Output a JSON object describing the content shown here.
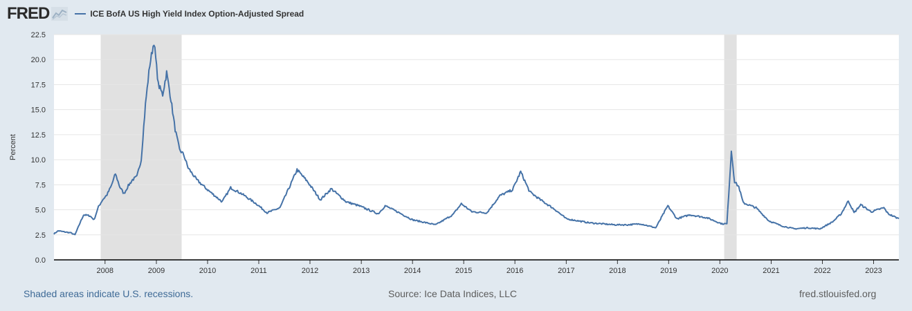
{
  "header": {
    "logo_text": "FRED",
    "legend_label": "ICE BofA US High Yield Index Option-Adjusted Spread"
  },
  "footer": {
    "recession_note": "Shaded areas indicate U.S. recessions.",
    "source": "Source: Ice Data Indices, LLC",
    "site": "fred.stlouisfed.org"
  },
  "colors": {
    "line": "#4572a7",
    "recession": "#e1e1e1",
    "background": "#e1e9f0",
    "plot": "#ffffff"
  },
  "chart_data": {
    "type": "line",
    "ylabel": "Percent",
    "ylim": [
      0,
      22.5
    ],
    "yticks": [
      "0.0",
      "2.5",
      "5.0",
      "7.5",
      "10.0",
      "12.5",
      "15.0",
      "17.5",
      "20.0",
      "22.5"
    ],
    "xlim": [
      "2007-01-02",
      "2023-06-30"
    ],
    "xticks": [
      "2008",
      "2009",
      "2010",
      "2011",
      "2012",
      "2013",
      "2014",
      "2015",
      "2016",
      "2017",
      "2018",
      "2019",
      "2020",
      "2021",
      "2022",
      "2023"
    ],
    "grid": true,
    "legend": "top-left",
    "recessions": [
      {
        "start": "2007-12-01",
        "end": "2009-06-30"
      },
      {
        "start": "2020-02-01",
        "end": "2020-04-30"
      }
    ],
    "series": [
      {
        "name": "ICE BofA US High Yield Index Option-Adjusted Spread",
        "points": [
          [
            "2007-01-02",
            2.6
          ],
          [
            "2007-02-01",
            2.9
          ],
          [
            "2007-03-15",
            2.8
          ],
          [
            "2007-05-01",
            2.7
          ],
          [
            "2007-06-01",
            2.5
          ],
          [
            "2007-07-01",
            3.5
          ],
          [
            "2007-08-01",
            4.5
          ],
          [
            "2007-09-15",
            4.4
          ],
          [
            "2007-10-15",
            4.0
          ],
          [
            "2007-11-15",
            5.3
          ],
          [
            "2007-12-15",
            6.0
          ],
          [
            "2008-01-15",
            6.5
          ],
          [
            "2008-02-15",
            7.4
          ],
          [
            "2008-03-15",
            8.6
          ],
          [
            "2008-04-15",
            7.3
          ],
          [
            "2008-05-15",
            6.6
          ],
          [
            "2008-06-15",
            7.4
          ],
          [
            "2008-07-15",
            8.0
          ],
          [
            "2008-08-15",
            8.3
          ],
          [
            "2008-09-15",
            10.0
          ],
          [
            "2008-10-15",
            15.5
          ],
          [
            "2008-11-15",
            19.5
          ],
          [
            "2008-12-15",
            21.8
          ],
          [
            "2009-01-15",
            17.5
          ],
          [
            "2009-02-15",
            16.5
          ],
          [
            "2009-03-15",
            18.7
          ],
          [
            "2009-04-15",
            16.0
          ],
          [
            "2009-05-15",
            13.0
          ],
          [
            "2009-06-15",
            11.0
          ],
          [
            "2009-07-15",
            10.5
          ],
          [
            "2009-08-15",
            9.2
          ],
          [
            "2009-10-15",
            8.0
          ],
          [
            "2010-01-01",
            7.0
          ],
          [
            "2010-04-15",
            5.8
          ],
          [
            "2010-06-15",
            7.2
          ],
          [
            "2010-09-01",
            6.6
          ],
          [
            "2010-12-15",
            5.6
          ],
          [
            "2011-03-01",
            4.7
          ],
          [
            "2011-06-01",
            5.2
          ],
          [
            "2011-08-15",
            7.5
          ],
          [
            "2011-10-01",
            9.0
          ],
          [
            "2011-12-15",
            7.8
          ],
          [
            "2012-03-15",
            6.0
          ],
          [
            "2012-06-01",
            7.1
          ],
          [
            "2012-09-15",
            5.8
          ],
          [
            "2012-12-15",
            5.4
          ],
          [
            "2013-05-01",
            4.6
          ],
          [
            "2013-06-20",
            5.4
          ],
          [
            "2013-09-15",
            4.8
          ],
          [
            "2014-01-01",
            4.0
          ],
          [
            "2014-06-15",
            3.5
          ],
          [
            "2014-10-15",
            4.5
          ],
          [
            "2014-12-15",
            5.6
          ],
          [
            "2015-03-01",
            4.8
          ],
          [
            "2015-06-15",
            4.7
          ],
          [
            "2015-09-15",
            6.4
          ],
          [
            "2015-12-15",
            7.0
          ],
          [
            "2016-02-11",
            8.8
          ],
          [
            "2016-04-15",
            6.8
          ],
          [
            "2016-07-01",
            6.0
          ],
          [
            "2016-10-15",
            5.0
          ],
          [
            "2017-01-01",
            4.1
          ],
          [
            "2017-06-15",
            3.7
          ],
          [
            "2017-12-15",
            3.5
          ],
          [
            "2018-03-15",
            3.5
          ],
          [
            "2018-06-15",
            3.6
          ],
          [
            "2018-10-01",
            3.2
          ],
          [
            "2018-12-26",
            5.4
          ],
          [
            "2019-03-01",
            4.1
          ],
          [
            "2019-06-01",
            4.5
          ],
          [
            "2019-10-01",
            4.2
          ],
          [
            "2020-01-15",
            3.6
          ],
          [
            "2020-02-20",
            3.6
          ],
          [
            "2020-03-23",
            10.9
          ],
          [
            "2020-04-15",
            7.8
          ],
          [
            "2020-05-15",
            7.3
          ],
          [
            "2020-06-15",
            5.7
          ],
          [
            "2020-09-15",
            5.2
          ],
          [
            "2020-12-15",
            3.9
          ],
          [
            "2021-03-15",
            3.4
          ],
          [
            "2021-06-15",
            3.1
          ],
          [
            "2021-09-15",
            3.2
          ],
          [
            "2021-12-15",
            3.1
          ],
          [
            "2022-03-15",
            3.8
          ],
          [
            "2022-05-15",
            4.6
          ],
          [
            "2022-07-05",
            5.9
          ],
          [
            "2022-08-15",
            4.7
          ],
          [
            "2022-10-01",
            5.5
          ],
          [
            "2022-12-15",
            4.8
          ],
          [
            "2023-03-15",
            5.2
          ],
          [
            "2023-04-15",
            4.6
          ],
          [
            "2023-06-30",
            4.1
          ]
        ]
      }
    ]
  }
}
